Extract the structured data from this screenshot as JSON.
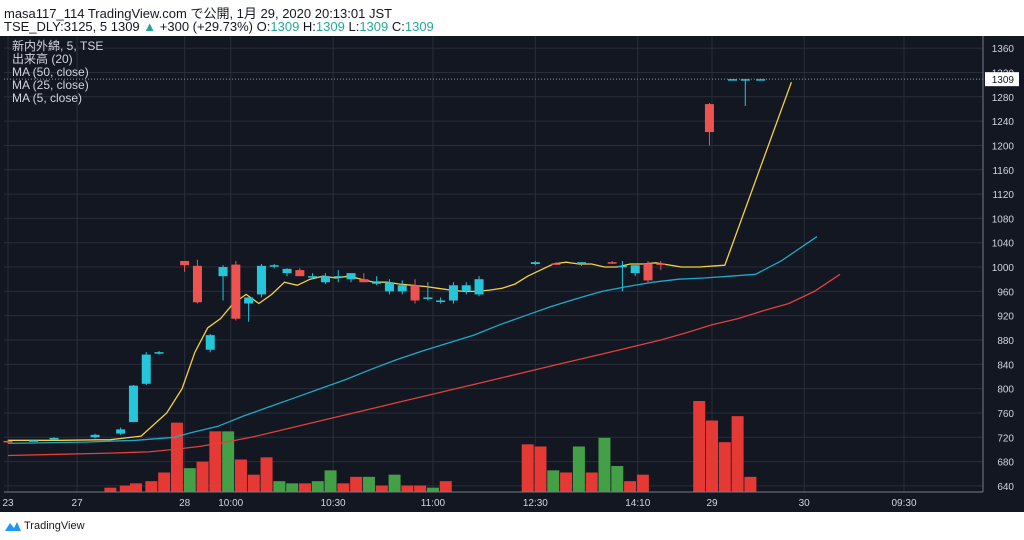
{
  "header": {
    "line1": "masa117_114 TradingView.com で公開, 1月 29, 2020 20:13:01 JST",
    "symbol": "TSE_DLY:3125, 5",
    "last": "1309",
    "arrow": "▲",
    "change": "+300 (+29.73%)",
    "o_label": "O:",
    "o": "1309",
    "h_label": "H:",
    "h": "1309",
    "l_label": "L:",
    "l": "1309",
    "c_label": "C:",
    "c": "1309"
  },
  "legend": [
    "新内外綿, 5, TSE",
    "出来高 (20)",
    "MA (50, close)",
    "MA (25, close)",
    "MA (5, close)"
  ],
  "footer": {
    "brand": "TradingView"
  },
  "colors": {
    "background": "#131722",
    "grid": "#2a2e39",
    "up": "#26c6da",
    "down": "#ef5350",
    "vol_up": "#43a047",
    "vol_down": "#e53935",
    "ma5": "#f5d142",
    "ma25": "#1fa9c9",
    "ma50": "#e0413a"
  },
  "chart_data": {
    "type": "candlestick",
    "ylim": [
      630,
      1380
    ],
    "y_ticks": [
      640,
      680,
      720,
      760,
      800,
      840,
      880,
      920,
      960,
      1000,
      1040,
      1080,
      1120,
      1160,
      1200,
      1240,
      1280,
      1320,
      1360
    ],
    "x_ticks": [
      {
        "label": "23",
        "t": 0
      },
      {
        "label": "27",
        "t": 2.7
      },
      {
        "label": "28",
        "t": 6.9
      },
      {
        "label": "10:00",
        "t": 8.7
      },
      {
        "label": "10:30",
        "t": 12.7
      },
      {
        "label": "11:00",
        "t": 16.6
      },
      {
        "label": "12:30",
        "t": 20.6
      },
      {
        "label": "14:10",
        "t": 24.6
      },
      {
        "label": "29",
        "t": 27.5
      },
      {
        "label": "30",
        "t": 31.1
      },
      {
        "label": "09:30",
        "t": 35
      }
    ],
    "last_price_label": "1309",
    "candles": [
      {
        "t": 0,
        "o": 714,
        "h": 716,
        "l": 710,
        "c": 713
      },
      {
        "t": 1,
        "o": 715,
        "h": 716,
        "l": 714,
        "c": 715
      },
      {
        "t": 1.8,
        "o": 718,
        "h": 720,
        "l": 716,
        "c": 719
      },
      {
        "t": 3.4,
        "o": 720,
        "h": 726,
        "l": 718,
        "c": 724
      },
      {
        "t": 4.4,
        "o": 726,
        "h": 736,
        "l": 724,
        "c": 733
      },
      {
        "t": 4.9,
        "o": 745,
        "h": 806,
        "l": 745,
        "c": 805
      },
      {
        "t": 5.4,
        "o": 808,
        "h": 860,
        "l": 806,
        "c": 856
      },
      {
        "t": 5.9,
        "o": 858,
        "h": 862,
        "l": 856,
        "c": 860
      },
      {
        "t": 6.9,
        "o": 1010,
        "h": 1010,
        "l": 992,
        "c": 1003
      },
      {
        "t": 7.4,
        "o": 1002,
        "h": 1012,
        "l": 940,
        "c": 942
      },
      {
        "t": 7.9,
        "o": 864,
        "h": 890,
        "l": 860,
        "c": 888
      },
      {
        "t": 8.4,
        "o": 985,
        "h": 1003,
        "l": 945,
        "c": 1000
      },
      {
        "t": 8.9,
        "o": 1004,
        "h": 1010,
        "l": 912,
        "c": 915
      },
      {
        "t": 9.4,
        "o": 940,
        "h": 950,
        "l": 910,
        "c": 950
      },
      {
        "t": 9.9,
        "o": 955,
        "h": 1005,
        "l": 950,
        "c": 1002
      },
      {
        "t": 10.4,
        "o": 1002,
        "h": 1005,
        "l": 998,
        "c": 1003
      },
      {
        "t": 10.9,
        "o": 990,
        "h": 998,
        "l": 985,
        "c": 997
      },
      {
        "t": 11.4,
        "o": 995,
        "h": 998,
        "l": 985,
        "c": 985
      },
      {
        "t": 11.9,
        "o": 985,
        "h": 990,
        "l": 980,
        "c": 985
      },
      {
        "t": 12.4,
        "o": 975,
        "h": 990,
        "l": 972,
        "c": 985
      },
      {
        "t": 12.9,
        "o": 985,
        "h": 995,
        "l": 975,
        "c": 985
      },
      {
        "t": 13.4,
        "o": 980,
        "h": 990,
        "l": 975,
        "c": 990
      },
      {
        "t": 13.9,
        "o": 980,
        "h": 990,
        "l": 975,
        "c": 975
      },
      {
        "t": 14.4,
        "o": 975,
        "h": 985,
        "l": 970,
        "c": 975
      },
      {
        "t": 14.9,
        "o": 960,
        "h": 980,
        "l": 955,
        "c": 975
      },
      {
        "t": 15.4,
        "o": 960,
        "h": 978,
        "l": 955,
        "c": 970
      },
      {
        "t": 15.9,
        "o": 970,
        "h": 980,
        "l": 940,
        "c": 945
      },
      {
        "t": 16.4,
        "o": 950,
        "h": 975,
        "l": 945,
        "c": 950
      },
      {
        "t": 16.9,
        "o": 945,
        "h": 950,
        "l": 940,
        "c": 945
      },
      {
        "t": 17.4,
        "o": 945,
        "h": 975,
        "l": 940,
        "c": 970
      },
      {
        "t": 17.9,
        "o": 960,
        "h": 975,
        "l": 955,
        "c": 970
      },
      {
        "t": 18.4,
        "o": 955,
        "h": 985,
        "l": 952,
        "c": 980
      },
      {
        "t": 20.6,
        "o": 1005,
        "h": 1010,
        "l": 1003,
        "c": 1008
      },
      {
        "t": 21.4,
        "o": 1006,
        "h": 1008,
        "l": 1004,
        "c": 1005
      },
      {
        "t": 22.4,
        "o": 1005,
        "h": 1008,
        "l": 1002,
        "c": 1008
      },
      {
        "t": 23.6,
        "o": 1008,
        "h": 1010,
        "l": 1005,
        "c": 1006
      },
      {
        "t": 24.0,
        "o": 1000,
        "h": 1010,
        "l": 960,
        "c": 1002
      },
      {
        "t": 24.5,
        "o": 990,
        "h": 1003,
        "l": 985,
        "c": 1003
      },
      {
        "t": 25.0,
        "o": 1006,
        "h": 1010,
        "l": 975,
        "c": 978
      },
      {
        "t": 25.5,
        "o": 1006,
        "h": 1010,
        "l": 995,
        "c": 1005
      },
      {
        "t": 27.4,
        "o": 1268,
        "h": 1270,
        "l": 1200,
        "c": 1222
      },
      {
        "t": 28.3,
        "o": 1309,
        "h": 1309,
        "l": 1309,
        "c": 1309
      },
      {
        "t": 28.8,
        "o": 1309,
        "h": 1309,
        "l": 1265,
        "c": 1309
      },
      {
        "t": 29.4,
        "o": 1309,
        "h": 1309,
        "l": 1309,
        "c": 1309
      }
    ],
    "volume": [
      {
        "t": 4.0,
        "v": 2,
        "up": false
      },
      {
        "t": 4.6,
        "v": 3,
        "up": false
      },
      {
        "t": 5.0,
        "v": 4,
        "up": false
      },
      {
        "t": 5.6,
        "v": 5,
        "up": false
      },
      {
        "t": 6.1,
        "v": 9,
        "up": false
      },
      {
        "t": 6.6,
        "v": 32,
        "up": false
      },
      {
        "t": 7.1,
        "v": 11,
        "up": true
      },
      {
        "t": 7.6,
        "v": 14,
        "up": false
      },
      {
        "t": 8.1,
        "v": 28,
        "up": false
      },
      {
        "t": 8.6,
        "v": 28,
        "up": true
      },
      {
        "t": 9.1,
        "v": 15,
        "up": false
      },
      {
        "t": 9.6,
        "v": 8,
        "up": false
      },
      {
        "t": 10.1,
        "v": 16,
        "up": false
      },
      {
        "t": 10.6,
        "v": 5,
        "up": true
      },
      {
        "t": 11.1,
        "v": 4,
        "up": true
      },
      {
        "t": 11.6,
        "v": 4,
        "up": false
      },
      {
        "t": 12.1,
        "v": 5,
        "up": true
      },
      {
        "t": 12.6,
        "v": 10,
        "up": true
      },
      {
        "t": 13.1,
        "v": 4,
        "up": false
      },
      {
        "t": 13.6,
        "v": 7,
        "up": false
      },
      {
        "t": 14.1,
        "v": 7,
        "up": true
      },
      {
        "t": 14.6,
        "v": 3,
        "up": false
      },
      {
        "t": 15.1,
        "v": 8,
        "up": true
      },
      {
        "t": 15.6,
        "v": 3,
        "up": false
      },
      {
        "t": 16.1,
        "v": 3,
        "up": false
      },
      {
        "t": 16.6,
        "v": 2,
        "up": true
      },
      {
        "t": 17.1,
        "v": 5,
        "up": false
      },
      {
        "t": 20.3,
        "v": 22,
        "up": false
      },
      {
        "t": 20.8,
        "v": 21,
        "up": false
      },
      {
        "t": 21.3,
        "v": 10,
        "up": true
      },
      {
        "t": 21.8,
        "v": 9,
        "up": false
      },
      {
        "t": 22.3,
        "v": 21,
        "up": true
      },
      {
        "t": 22.8,
        "v": 9,
        "up": false
      },
      {
        "t": 23.3,
        "v": 25,
        "up": true
      },
      {
        "t": 23.8,
        "v": 12,
        "up": true
      },
      {
        "t": 24.3,
        "v": 5,
        "up": false
      },
      {
        "t": 24.8,
        "v": 8,
        "up": false
      },
      {
        "t": 27.0,
        "v": 42,
        "up": false
      },
      {
        "t": 27.5,
        "v": 33,
        "up": false
      },
      {
        "t": 28.0,
        "v": 23,
        "up": false
      },
      {
        "t": 28.5,
        "v": 35,
        "up": false
      },
      {
        "t": 29.0,
        "v": 7,
        "up": false
      }
    ],
    "ma5": [
      [
        0,
        715
      ],
      [
        2,
        715
      ],
      [
        4,
        716
      ],
      [
        5.2,
        722
      ],
      [
        6.2,
        760
      ],
      [
        6.8,
        800
      ],
      [
        7.3,
        860
      ],
      [
        7.8,
        900
      ],
      [
        8.3,
        915
      ],
      [
        8.8,
        940
      ],
      [
        9.3,
        955
      ],
      [
        9.8,
        940
      ],
      [
        10.3,
        955
      ],
      [
        10.8,
        975
      ],
      [
        11.3,
        970
      ],
      [
        11.8,
        980
      ],
      [
        12.3,
        985
      ],
      [
        12.8,
        982
      ],
      [
        13.3,
        985
      ],
      [
        13.8,
        980
      ],
      [
        14.3,
        975
      ],
      [
        14.8,
        975
      ],
      [
        15.3,
        972
      ],
      [
        15.8,
        970
      ],
      [
        16.3,
        968
      ],
      [
        16.8,
        965
      ],
      [
        17.3,
        962
      ],
      [
        17.8,
        960
      ],
      [
        18.3,
        960
      ],
      [
        18.8,
        962
      ],
      [
        19.3,
        965
      ],
      [
        19.8,
        972
      ],
      [
        20.3,
        985
      ],
      [
        20.8,
        995
      ],
      [
        21.3,
        1005
      ],
      [
        21.8,
        1008
      ],
      [
        22.3,
        1005
      ],
      [
        22.8,
        1005
      ],
      [
        23.3,
        1000
      ],
      [
        23.8,
        1000
      ],
      [
        24.3,
        1005
      ],
      [
        24.8,
        1005
      ],
      [
        25.3,
        1007
      ],
      [
        26.3,
        1000
      ],
      [
        27.0,
        1000
      ],
      [
        28,
        1003
      ],
      [
        30.6,
        1304
      ]
    ],
    "ma25": [
      [
        0,
        710
      ],
      [
        3,
        712
      ],
      [
        5,
        715
      ],
      [
        6.5,
        720
      ],
      [
        7.2,
        728
      ],
      [
        8.2,
        738
      ],
      [
        9.2,
        755
      ],
      [
        10.2,
        770
      ],
      [
        11.2,
        785
      ],
      [
        12.2,
        800
      ],
      [
        13.2,
        815
      ],
      [
        14.2,
        832
      ],
      [
        15.2,
        848
      ],
      [
        16.2,
        862
      ],
      [
        17.2,
        875
      ],
      [
        18.2,
        888
      ],
      [
        19.2,
        905
      ],
      [
        20.2,
        920
      ],
      [
        21.2,
        935
      ],
      [
        22.2,
        948
      ],
      [
        23.2,
        960
      ],
      [
        24.2,
        968
      ],
      [
        25.2,
        975
      ],
      [
        26.2,
        980
      ],
      [
        27.2,
        982
      ],
      [
        28.2,
        985
      ],
      [
        29.2,
        988
      ],
      [
        30.2,
        1010
      ],
      [
        31.6,
        1050
      ]
    ],
    "ma50": [
      [
        0,
        690
      ],
      [
        2,
        692
      ],
      [
        4,
        694
      ],
      [
        5.5,
        696
      ],
      [
        6.5,
        700
      ],
      [
        7.5,
        705
      ],
      [
        8.5,
        712
      ],
      [
        9.5,
        720
      ],
      [
        10.5,
        730
      ],
      [
        11.5,
        740
      ],
      [
        12.5,
        750
      ],
      [
        13.5,
        760
      ],
      [
        14.5,
        770
      ],
      [
        15.5,
        780
      ],
      [
        16.5,
        790
      ],
      [
        17.5,
        800
      ],
      [
        18.5,
        810
      ],
      [
        19.5,
        820
      ],
      [
        20.5,
        830
      ],
      [
        21.5,
        840
      ],
      [
        22.5,
        850
      ],
      [
        23.5,
        860
      ],
      [
        24.5,
        870
      ],
      [
        25.5,
        880
      ],
      [
        26.5,
        892
      ],
      [
        27.5,
        905
      ],
      [
        28.5,
        915
      ],
      [
        29.5,
        928
      ],
      [
        30.5,
        940
      ],
      [
        31.5,
        960
      ],
      [
        32.5,
        988
      ]
    ]
  }
}
